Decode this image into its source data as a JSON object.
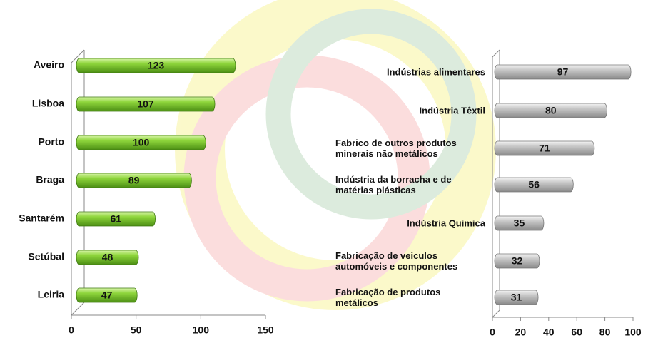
{
  "chart_data": [
    {
      "type": "bar",
      "orientation": "horizontal",
      "color": "#7dc832",
      "categories": [
        "Aveiro",
        "Lisboa",
        "Porto",
        "Braga",
        "Santarém",
        "Setúbal",
        "Leiria"
      ],
      "values": [
        123,
        107,
        100,
        89,
        61,
        48,
        47
      ],
      "xlim": [
        0,
        150
      ],
      "xticks": [
        0,
        50,
        100,
        150
      ]
    },
    {
      "type": "bar",
      "orientation": "horizontal",
      "color": "#bdbdbd",
      "categories": [
        "Indústrias alimentares",
        "Indústria Têxtil",
        "Fabrico de outros produtos minerais não metálicos",
        "Indústria da borracha e de matérias plásticas",
        "Indústria Quimica",
        "Fabricação de veiculos automóveis e componentes",
        "Fabricação de produtos metálicos"
      ],
      "values": [
        97,
        80,
        71,
        56,
        35,
        32,
        31
      ],
      "xlim": [
        0,
        100
      ],
      "xticks": [
        0,
        20,
        40,
        60,
        80,
        100
      ]
    }
  ]
}
